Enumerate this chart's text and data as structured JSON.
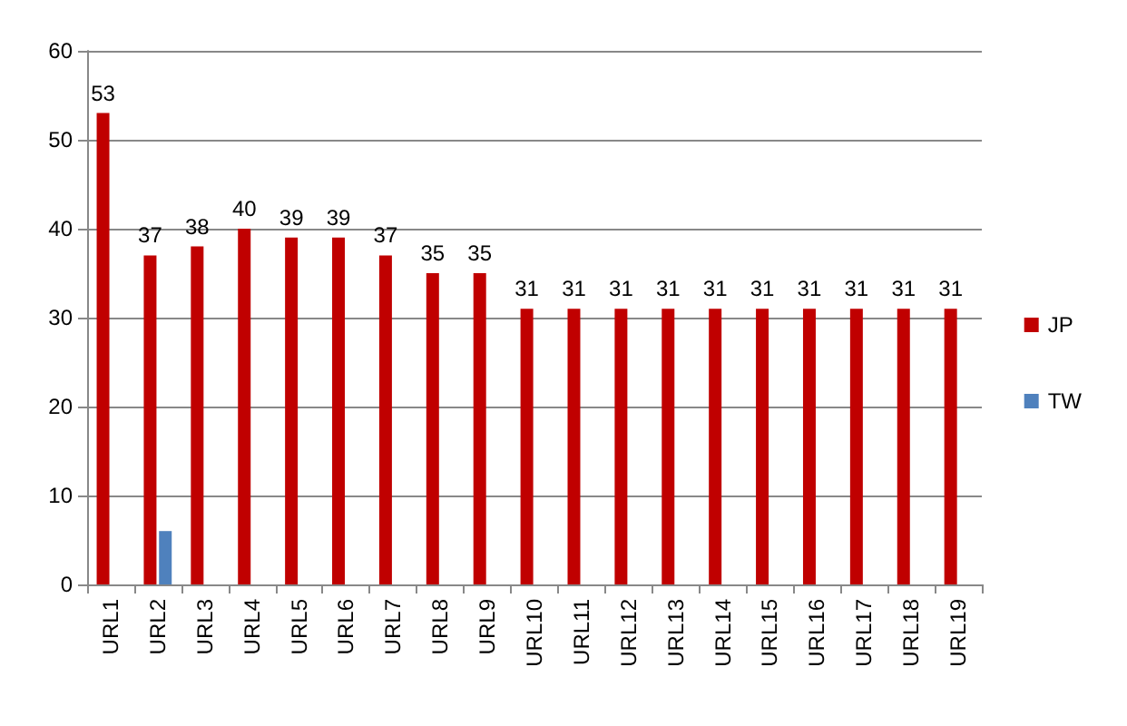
{
  "chart_data": {
    "type": "bar",
    "categories": [
      "URL1",
      "URL2",
      "URL3",
      "URL4",
      "URL5",
      "URL6",
      "URL7",
      "URL8",
      "URL9",
      "URL10",
      "URL11",
      "URL12",
      "URL13",
      "URL14",
      "URL15",
      "URL16",
      "URL17",
      "URL18",
      "URL19"
    ],
    "series": [
      {
        "name": "JP",
        "color": "#c00000",
        "values": [
          53,
          37,
          38,
          40,
          39,
          39,
          37,
          35,
          35,
          31,
          31,
          31,
          31,
          31,
          31,
          31,
          31,
          31,
          31
        ],
        "value_labels": [
          "53",
          "37",
          "38",
          "40",
          "39",
          "39",
          "37",
          "35",
          "35",
          "31",
          "31",
          "31",
          "31",
          "31",
          "31",
          "31",
          "31",
          "31",
          "31"
        ]
      },
      {
        "name": "TW",
        "color": "#4f81bd",
        "values": [
          null,
          6,
          null,
          null,
          null,
          null,
          null,
          null,
          null,
          null,
          null,
          null,
          null,
          null,
          null,
          null,
          null,
          null,
          null
        ]
      }
    ],
    "ylim": [
      0,
      60
    ],
    "yticks": [
      0,
      10,
      20,
      30,
      40,
      50,
      60
    ],
    "grid": "y",
    "legend": "right"
  }
}
